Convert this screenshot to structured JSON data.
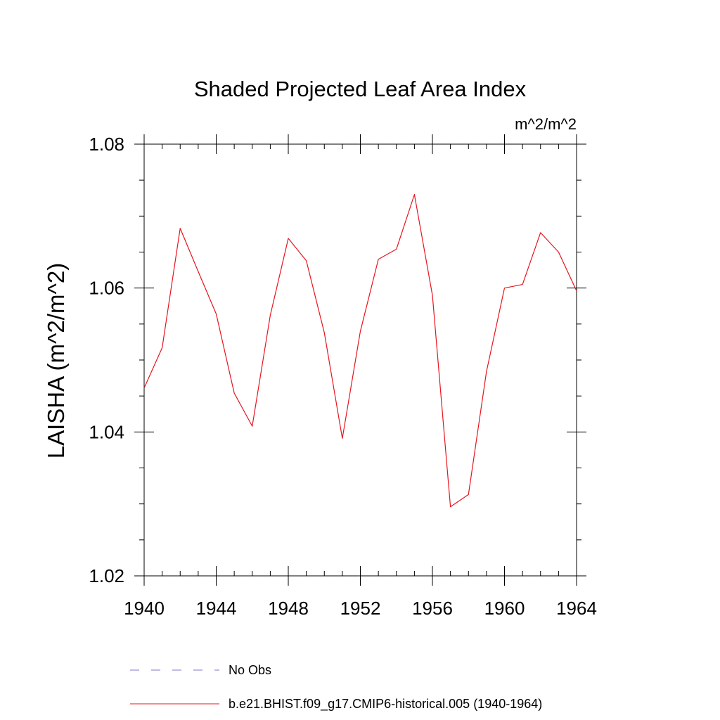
{
  "chart_data": {
    "type": "line",
    "title": "Shaded Projected Leaf Area Index",
    "units_label": "m^2/m^2",
    "ylabel": "LAISHA  (m^2/m^2)",
    "xlabel": "",
    "xlim": [
      1940,
      1964
    ],
    "ylim": [
      1.02,
      1.08
    ],
    "x_ticks": [
      1940,
      1944,
      1948,
      1952,
      1956,
      1960,
      1964
    ],
    "x_tick_labels": [
      "1940",
      "1944",
      "1948",
      "1952",
      "1956",
      "1960",
      "1964"
    ],
    "x_minor_step": 1,
    "y_ticks": [
      1.02,
      1.04,
      1.06,
      1.08
    ],
    "y_tick_labels": [
      "1.02",
      "1.04",
      "1.06",
      "1.08"
    ],
    "y_minor_step": 0.005,
    "series": [
      {
        "name": "b.e21.BHIST.f09_g17.CMIP6-historical.005 (1940-1964)",
        "color": "#e8141e",
        "x": [
          1940,
          1941,
          1942,
          1943,
          1944,
          1945,
          1946,
          1947,
          1948,
          1949,
          1950,
          1951,
          1952,
          1953,
          1954,
          1955,
          1956,
          1957,
          1958,
          1959,
          1960,
          1961,
          1962,
          1963,
          1964
        ],
        "values": [
          1.0461,
          1.0517,
          1.0683,
          1.0623,
          1.0564,
          1.0454,
          1.0408,
          1.0562,
          1.0669,
          1.0638,
          1.0538,
          1.0391,
          1.054,
          1.064,
          1.0654,
          1.073,
          1.059,
          1.0296,
          1.0313,
          1.0484,
          1.06,
          1.0605,
          1.0677,
          1.065,
          1.0596
        ]
      }
    ],
    "legend": [
      {
        "label": "No Obs",
        "style": "dashed",
        "color": "#7d78c8"
      },
      {
        "label": "b.e21.BHIST.f09_g17.CMIP6-historical.005 (1940-1964)",
        "style": "solid",
        "color": "#e8141e"
      }
    ]
  }
}
